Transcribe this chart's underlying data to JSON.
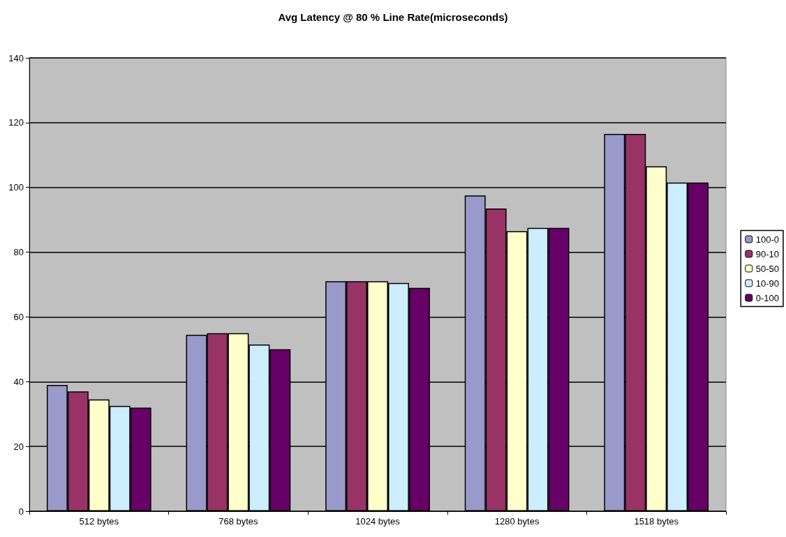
{
  "chart_data": {
    "type": "bar",
    "title": "Avg Latency @ 80 % Line Rate(microseconds)",
    "categories": [
      "512 bytes",
      "768 bytes",
      "1024 bytes",
      "1280 bytes",
      "1518 bytes"
    ],
    "series": [
      {
        "name": "100-0",
        "color": "#9999cc",
        "values": [
          39,
          54.5,
          71,
          97.5,
          116.5
        ]
      },
      {
        "name": "90-10",
        "color": "#993366",
        "values": [
          37,
          55,
          71,
          93.5,
          116.5
        ]
      },
      {
        "name": "50-50",
        "color": "#ffffcc",
        "values": [
          34.5,
          55,
          71,
          86.5,
          106.5
        ]
      },
      {
        "name": "10-90",
        "color": "#cceeff",
        "values": [
          32.5,
          51.5,
          70.5,
          87.5,
          101.5
        ]
      },
      {
        "name": "0-100",
        "color": "#660066",
        "values": [
          32,
          50,
          69,
          87.5,
          101.5
        ]
      }
    ],
    "ylim": [
      0,
      140
    ],
    "yticks": [
      0,
      20,
      40,
      60,
      80,
      100,
      120,
      140
    ],
    "grid": "y",
    "legend": "right"
  }
}
